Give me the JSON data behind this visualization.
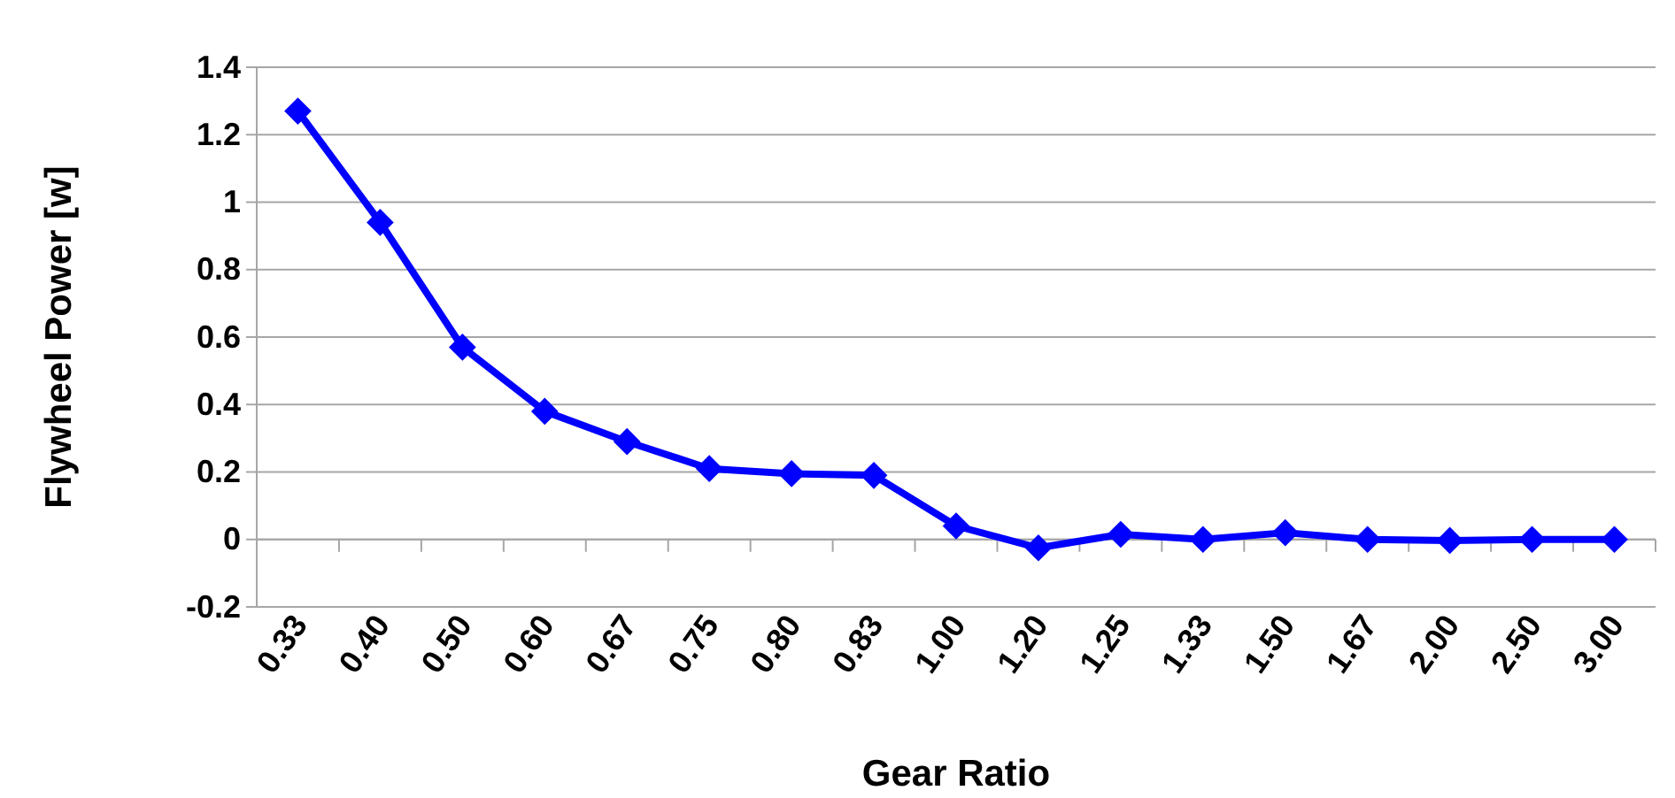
{
  "chart_data": {
    "type": "line",
    "xlabel": "Gear Ratio",
    "ylabel": "Flywheel Power [w]",
    "categories": [
      "0.33",
      "0.40",
      "0.50",
      "0.60",
      "0.67",
      "0.75",
      "0.80",
      "0.83",
      "1.00",
      "1.20",
      "1.25",
      "1.33",
      "1.50",
      "1.67",
      "2.00",
      "2.50",
      "3.00"
    ],
    "series": [
      {
        "color": "#0000ff",
        "values": [
          1.27,
          0.94,
          0.57,
          0.38,
          0.29,
          0.21,
          0.195,
          0.19,
          0.04,
          -0.025,
          0.015,
          0,
          0.02,
          0,
          -0.003,
          0,
          0
        ]
      }
    ],
    "ylim": [
      -0.2,
      1.4
    ],
    "yticks": [
      -0.2,
      0,
      0.2,
      0.4,
      0.6,
      0.8,
      1,
      1.2,
      1.4
    ],
    "grid": "y",
    "marker": "diamond",
    "line_style": "solid"
  }
}
